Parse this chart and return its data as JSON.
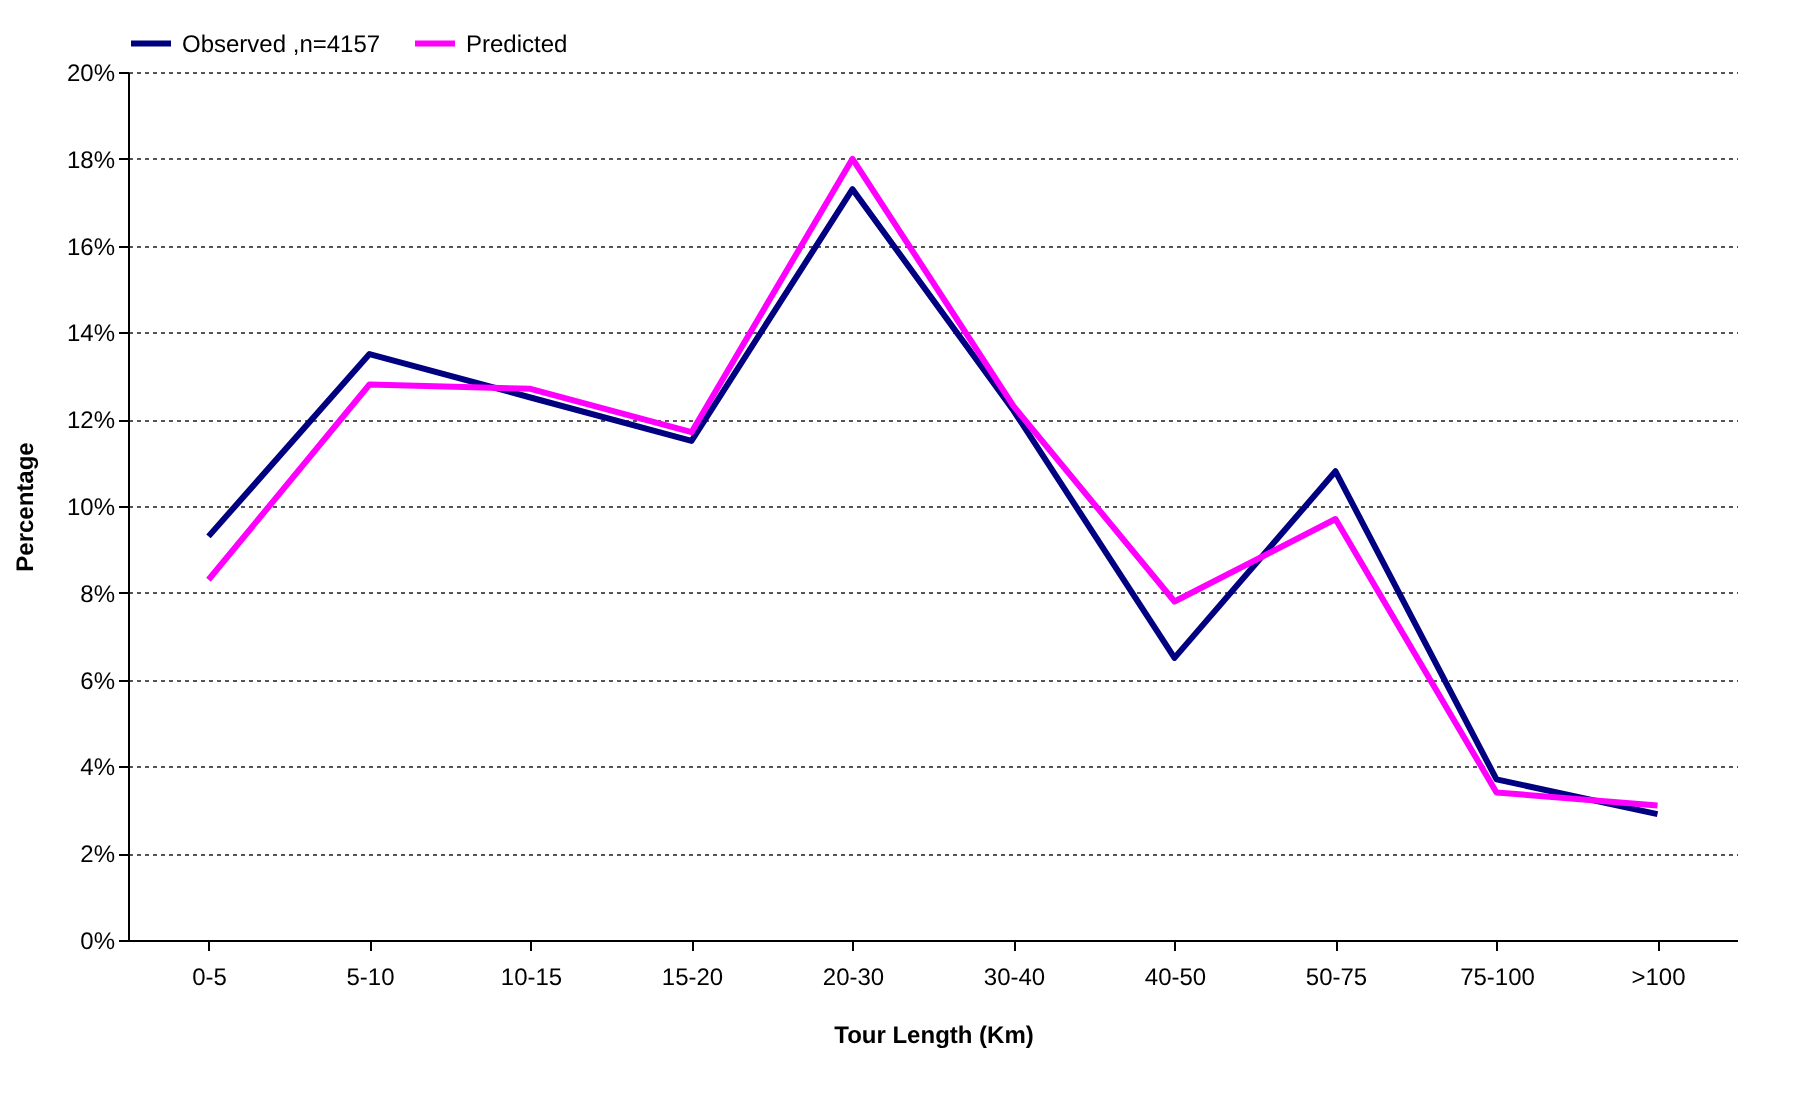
{
  "chart_data": {
    "type": "line",
    "xlabel": "Tour Length  (Km)",
    "ylabel": "Percentage",
    "categories": [
      "0-5",
      "5-10",
      "10-15",
      "15-20",
      "20-30",
      "30-40",
      "40-50",
      "50-75",
      "75-100",
      ">100"
    ],
    "series": [
      {
        "name": "Observed ,n=4157",
        "color": "#000080",
        "values": [
          9.3,
          13.5,
          12.5,
          11.5,
          17.3,
          12.2,
          6.5,
          10.8,
          3.7,
          2.9
        ]
      },
      {
        "name": "Predicted",
        "color": "#ff00ff",
        "values": [
          8.3,
          12.8,
          12.7,
          11.7,
          18.0,
          12.3,
          7.8,
          9.7,
          3.4,
          3.1
        ]
      }
    ],
    "ylim": [
      0,
      20
    ],
    "yticks": [
      {
        "value": 0,
        "label": "0%"
      },
      {
        "value": 2,
        "label": "2%"
      },
      {
        "value": 4,
        "label": "4%"
      },
      {
        "value": 6,
        "label": "6%"
      },
      {
        "value": 8,
        "label": "8%"
      },
      {
        "value": 10,
        "label": "10%"
      },
      {
        "value": 12,
        "label": "12%"
      },
      {
        "value": 14,
        "label": "14%"
      },
      {
        "value": 16,
        "label": "16%"
      },
      {
        "value": 18,
        "label": "18%"
      },
      {
        "value": 20,
        "label": "20%"
      }
    ],
    "grid": "y",
    "legend": "top",
    "marker": "none",
    "line_style": "solid"
  }
}
